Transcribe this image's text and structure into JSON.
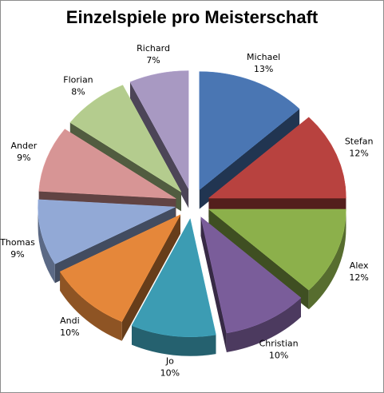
{
  "chart_data": {
    "type": "pie",
    "title": "Einzelspiele pro Meisterschaft",
    "categories": [
      "Michael",
      "Stefan",
      "Alex",
      "Christian",
      "Jo",
      "Andi",
      "Thomas",
      "Ander",
      "Florian",
      "Richard"
    ],
    "values": [
      13,
      12,
      12,
      10,
      10,
      10,
      9,
      9,
      8,
      7
    ],
    "value_labels": [
      "13%",
      "12%",
      "12%",
      "10%",
      "10%",
      "10%",
      "9%",
      "9%",
      "8%",
      "7%"
    ],
    "exploded": true,
    "style": "3d",
    "colors": [
      "#4a76b3",
      "#b8423f",
      "#8cb04b",
      "#7a5d9a",
      "#3c9cb3",
      "#e5873a",
      "#92a9d6",
      "#d79595",
      "#b4cc8e",
      "#a899c2"
    ]
  }
}
